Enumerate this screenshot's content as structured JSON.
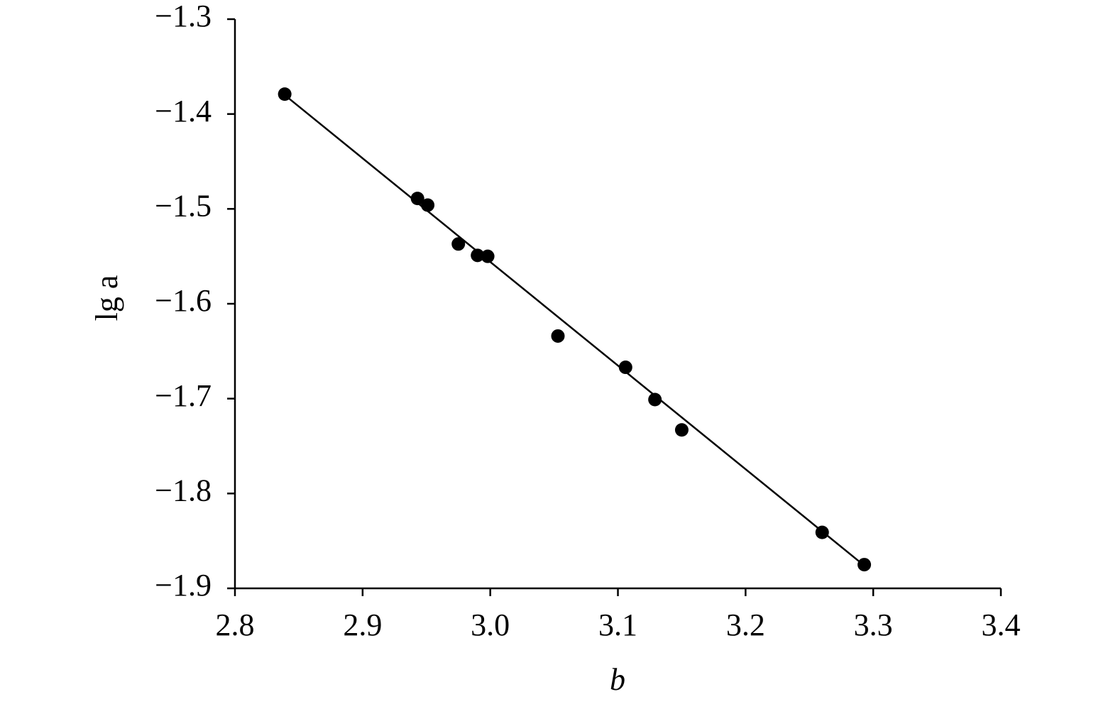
{
  "chart_data": {
    "type": "scatter",
    "x_label": "b",
    "y_label": "lg a",
    "xlim": [
      2.8,
      3.4
    ],
    "ylim": [
      -1.9,
      -1.3
    ],
    "xticks": [
      2.8,
      2.9,
      {
        "value": 3.0,
        "label": "3.0"
      },
      3.1,
      3.2,
      3.3,
      3.4
    ],
    "yticks": [
      {
        "value": -1.3,
        "label": "−1.3"
      },
      {
        "value": -1.4,
        "label": "−1.4"
      },
      {
        "value": -1.5,
        "label": "−1.5"
      },
      {
        "value": -1.6,
        "label": "−1.6"
      },
      {
        "value": -1.7,
        "label": "−1.7"
      },
      {
        "value": -1.8,
        "label": "−1.8"
      },
      {
        "value": -1.9,
        "label": "−1.9"
      }
    ],
    "series": [
      {
        "color": "#000000",
        "x": [
          2.839,
          2.943,
          2.951,
          2.975,
          2.99,
          2.998,
          3.053,
          3.106,
          3.129,
          3.15,
          3.26,
          3.293
        ],
        "values": [
          -1.379,
          -1.489,
          -1.496,
          -1.537,
          -1.549,
          -1.55,
          -1.634,
          -1.667,
          -1.701,
          -1.733,
          -1.841,
          -1.875
        ]
      }
    ],
    "fit_line": {
      "color": "#000000",
      "x": [
        2.839,
        3.293
      ],
      "values": [
        -1.38,
        -1.876
      ]
    }
  }
}
